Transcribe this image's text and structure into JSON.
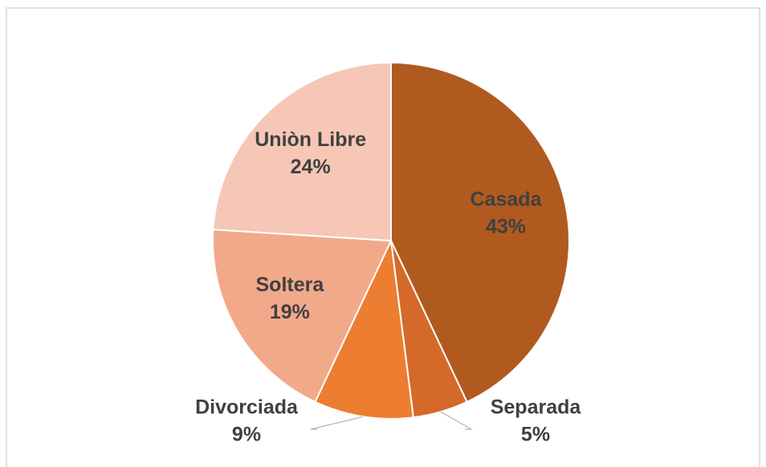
{
  "chart_data": {
    "type": "pie",
    "categories": [
      "Casada",
      "Separada",
      "Divorciada",
      "Soltera",
      "Uniòn Libre"
    ],
    "values": [
      43,
      5,
      9,
      19,
      24
    ],
    "value_labels": [
      "43%",
      "5%",
      "9%",
      "19%",
      "24%"
    ],
    "colors": [
      "#b05a1f",
      "#d4692a",
      "#ed7d31",
      "#f1a98a",
      "#f6c7b7"
    ]
  }
}
